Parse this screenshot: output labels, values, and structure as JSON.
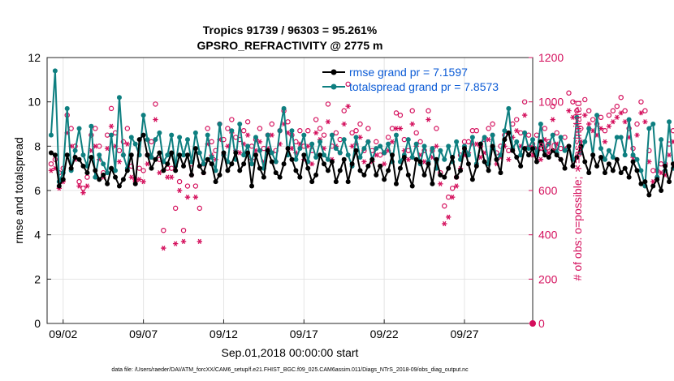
{
  "chart_data": {
    "type": "line",
    "title_line1": "Tropics 91739 / 96303 = 95.261%",
    "title_line2": "GPSRO_REFRACTIVITY @ 2775 m",
    "xlabel": "Sep.01,2018 00:00:00 start",
    "ylabel_left": "rmse and totalspread",
    "ylabel_right": "# of obs: o=possible; ∗=assimilated",
    "footnote": "data file: /Users/raeder/DAI/ATM_forcXX/CAM6_setup/f.e21.FHIST_BGC.f09_025.CAM6assim.011/Diags_NTrS_2018-09/obs_diag_output.nc",
    "xlim_days": [
      0.5,
      30.75
    ],
    "ylim_left": [
      0,
      12
    ],
    "ylim_right": [
      0,
      1200
    ],
    "x_ticks": [
      {
        "day": 1.5,
        "label": "09/02"
      },
      {
        "day": 6.5,
        "label": "09/07"
      },
      {
        "day": 11.5,
        "label": "09/12"
      },
      {
        "day": 16.5,
        "label": "09/17"
      },
      {
        "day": 21.5,
        "label": "09/22"
      },
      {
        "day": 26.5,
        "label": "09/27"
      }
    ],
    "y_ticks_left": [
      "0",
      "2",
      "4",
      "6",
      "8",
      "10",
      "12"
    ],
    "y_ticks_right": [
      "0",
      "200",
      "400",
      "600",
      "800",
      "1000",
      "1200"
    ],
    "colors": {
      "rmse": "#000000",
      "spread": "#0e7f80",
      "obs": "#d40f5c",
      "legend_text": "#0b5bd6",
      "grid": "#e4e4e4"
    },
    "series": [
      {
        "name": "rmse grand pr = 7.1597",
        "color": "#000000",
        "start_day": 0.75,
        "step_days": 0.25,
        "values": [
          7.7,
          7.6,
          6.2,
          6.5,
          7.6,
          7.0,
          7.5,
          7.4,
          7.1,
          6.8,
          7.5,
          6.9,
          6.5,
          6.7,
          6.3,
          7.0,
          6.6,
          6.2,
          6.5,
          6.9,
          7.6,
          6.3,
          8.3,
          8.5,
          7.6,
          7.0,
          7.4,
          7.7,
          6.9,
          7.2,
          7.7,
          6.9,
          7.6,
          7.1,
          7.6,
          6.7,
          7.9,
          7.1,
          6.8,
          7.4,
          7.2,
          6.4,
          6.7,
          7.7,
          6.9,
          7.2,
          7.7,
          6.9,
          7.2,
          7.7,
          6.2,
          7.6,
          7.0,
          6.6,
          7.8,
          7.3,
          6.8,
          6.6,
          7.2,
          7.9,
          7.4,
          6.9,
          6.6,
          7.6,
          7.0,
          6.4,
          6.7,
          7.6,
          7.2,
          6.9,
          7.3,
          6.4,
          6.9,
          7.4,
          6.4,
          7.2,
          7.8,
          6.9,
          6.7,
          7.1,
          7.4,
          6.7,
          7.1,
          6.5,
          6.9,
          7.6,
          6.3,
          7.0,
          7.5,
          6.7,
          6.2,
          7.4,
          7.3,
          6.7,
          7.2,
          6.3,
          7.4,
          6.7,
          6.6,
          7.0,
          7.5,
          6.6,
          6.9,
          7.9,
          7.2,
          6.5,
          7.1,
          8.1,
          7.3,
          6.9,
          8.0,
          7.4,
          6.8,
          8.3,
          8.6,
          7.8,
          7.5,
          7.1,
          7.9,
          7.6,
          7.9,
          7.3,
          8.2,
          7.6,
          7.5,
          7.8,
          7.6,
          7.4,
          7.0,
          8.0,
          7.1,
          7.5,
          8.0,
          7.3,
          6.8,
          7.6,
          7.1,
          7.5,
          6.8,
          7.2,
          6.9,
          7.4,
          6.8,
          7.0,
          6.6,
          7.3,
          6.9,
          6.3,
          6.4,
          5.8,
          6.2,
          6.5,
          6.0,
          7.1,
          6.4,
          7.2,
          6.6,
          6.5,
          7.0,
          7.4,
          7.2,
          7.8,
          7.0,
          6.9,
          6.6,
          7.4,
          7.3,
          7.5
        ]
      },
      {
        "name": "totalspread grand pr = 7.8573",
        "color": "#0e7f80",
        "start_day": 0.75,
        "step_days": 0.25,
        "values": [
          8.5,
          11.4,
          6.4,
          6.8,
          9.7,
          6.9,
          7.8,
          8.8,
          7.6,
          7.1,
          8.9,
          6.6,
          7.6,
          7.2,
          6.8,
          8.5,
          6.9,
          10.2,
          7.6,
          7.0,
          8.4,
          8.1,
          7.6,
          9.4,
          8.3,
          7.5,
          8.3,
          8.6,
          7.3,
          7.6,
          8.5,
          7.1,
          8.4,
          7.6,
          8.3,
          7.3,
          8.6,
          7.7,
          7.2,
          8.5,
          7.5,
          6.9,
          9.0,
          7.6,
          7.3,
          8.7,
          7.4,
          9.0,
          7.6,
          8.0,
          7.2,
          8.4,
          7.8,
          7.0,
          8.5,
          7.7,
          7.3,
          8.7,
          9.7,
          7.6,
          8.7,
          7.4,
          7.9,
          8.5,
          7.3,
          8.1,
          7.5,
          8.2,
          7.6,
          7.4,
          8.5,
          7.9,
          7.7,
          8.3,
          7.6,
          7.1,
          8.4,
          7.5,
          7.9,
          8.2,
          7.4,
          7.9,
          8.0,
          7.7,
          8.1,
          7.3,
          8.5,
          7.3,
          7.6,
          8.3,
          7.5,
          8.1,
          7.2,
          8.0,
          7.3,
          7.9,
          7.0,
          7.8,
          7.4,
          8.0,
          7.3,
          8.2,
          7.4,
          8.0,
          7.6,
          8.4,
          7.2,
          8.1,
          8.4,
          7.2,
          8.5,
          7.4,
          7.6,
          8.7,
          9.7,
          7.9,
          8.2,
          7.6,
          8.6,
          7.9,
          8.3,
          7.6,
          9.0,
          7.8,
          8.1,
          8.5,
          7.7,
          8.4,
          7.8,
          8.0,
          7.4,
          9.3,
          7.7,
          8.2,
          8.8,
          7.6,
          9.4,
          7.9,
          7.4,
          7.8,
          7.5,
          8.4,
          8.4,
          7.6,
          9.2,
          7.6,
          7.4,
          6.9,
          6.2,
          8.8,
          9.0,
          6.6,
          8.3,
          6.9,
          9.1,
          7.0,
          7.0,
          7.6,
          7.6,
          7.4,
          8.7,
          7.0,
          9.2,
          6.9,
          8.0,
          7.8,
          8.4
        ]
      },
      {
        "name": "possible (o)",
        "color": "#d40f5c",
        "start_day": 0.75,
        "step_days": 0.25,
        "values": [
          720,
          740,
          680,
          700,
          940,
          880,
          800,
          640,
          610,
          660,
          850,
          880,
          800,
          680,
          850,
          970,
          860,
          780,
          820,
          880,
          710,
          650,
          700,
          690,
          760,
          820,
          990,
          740,
          420,
          700,
          700,
          520,
          640,
          420,
          620,
          720,
          620,
          520,
          720,
          880,
          820,
          780,
          900,
          830,
          880,
          920,
          840,
          830,
          870,
          910,
          800,
          830,
          880,
          790,
          850,
          900,
          780,
          870,
          960,
          910,
          850,
          820,
          870,
          800,
          870,
          780,
          920,
          880,
          850,
          990,
          800,
          860,
          830,
          960,
          1080,
          860,
          870,
          900,
          780,
          880,
          780,
          820,
          760,
          770,
          840,
          880,
          950,
          940,
          830,
          780,
          960,
          860,
          820,
          780,
          960,
          780,
          880,
          680,
          530,
          570,
          610,
          660,
          760,
          820,
          820,
          870,
          870,
          800,
          830,
          880,
          900,
          770,
          800,
          850,
          780,
          900,
          920,
          860,
          1000,
          850,
          810,
          850,
          790,
          880,
          820,
          980,
          860,
          790,
          840,
          1040,
          1000,
          960,
          880,
          1010,
          960,
          920,
          900,
          930,
          870,
          940,
          960,
          980,
          1020,
          960,
          880,
          790,
          900,
          1000,
          960,
          780,
          690,
          690,
          720,
          720,
          810,
          870,
          900,
          920,
          960,
          930,
          840,
          880,
          960,
          900
        ]
      },
      {
        "name": "assimilated (*)",
        "color": "#d40f5c",
        "start_day": 0.75,
        "step_days": 0.25,
        "values": [
          690,
          700,
          610,
          640,
          860,
          800,
          740,
          620,
          590,
          620,
          780,
          800,
          740,
          660,
          790,
          890,
          800,
          730,
          760,
          810,
          660,
          640,
          650,
          640,
          720,
          750,
          920,
          680,
          340,
          660,
          660,
          360,
          600,
          370,
          570,
          670,
          570,
          370,
          680,
          810,
          760,
          740,
          830,
          760,
          800,
          860,
          780,
          770,
          810,
          850,
          740,
          780,
          820,
          730,
          790,
          850,
          730,
          810,
          900,
          860,
          790,
          770,
          810,
          740,
          800,
          720,
          860,
          830,
          790,
          910,
          740,
          800,
          770,
          900,
          980,
          800,
          810,
          840,
          730,
          820,
          730,
          760,
          710,
          720,
          780,
          820,
          880,
          880,
          780,
          740,
          900,
          800,
          760,
          730,
          920,
          750,
          800,
          630,
          450,
          480,
          570,
          620,
          700,
          760,
          770,
          810,
          810,
          750,
          770,
          830,
          850,
          720,
          750,
          800,
          740,
          840,
          870,
          800,
          940,
          800,
          760,
          790,
          740,
          830,
          770,
          920,
          810,
          740,
          790,
          960,
          930,
          900,
          820,
          940,
          900,
          870,
          850,
          880,
          820,
          890,
          910,
          930,
          950,
          910,
          840,
          750,
          850,
          950,
          910,
          730,
          640,
          660,
          680,
          670,
          760,
          820,
          850,
          870,
          910,
          880,
          790,
          830,
          910,
          850
        ]
      }
    ]
  }
}
